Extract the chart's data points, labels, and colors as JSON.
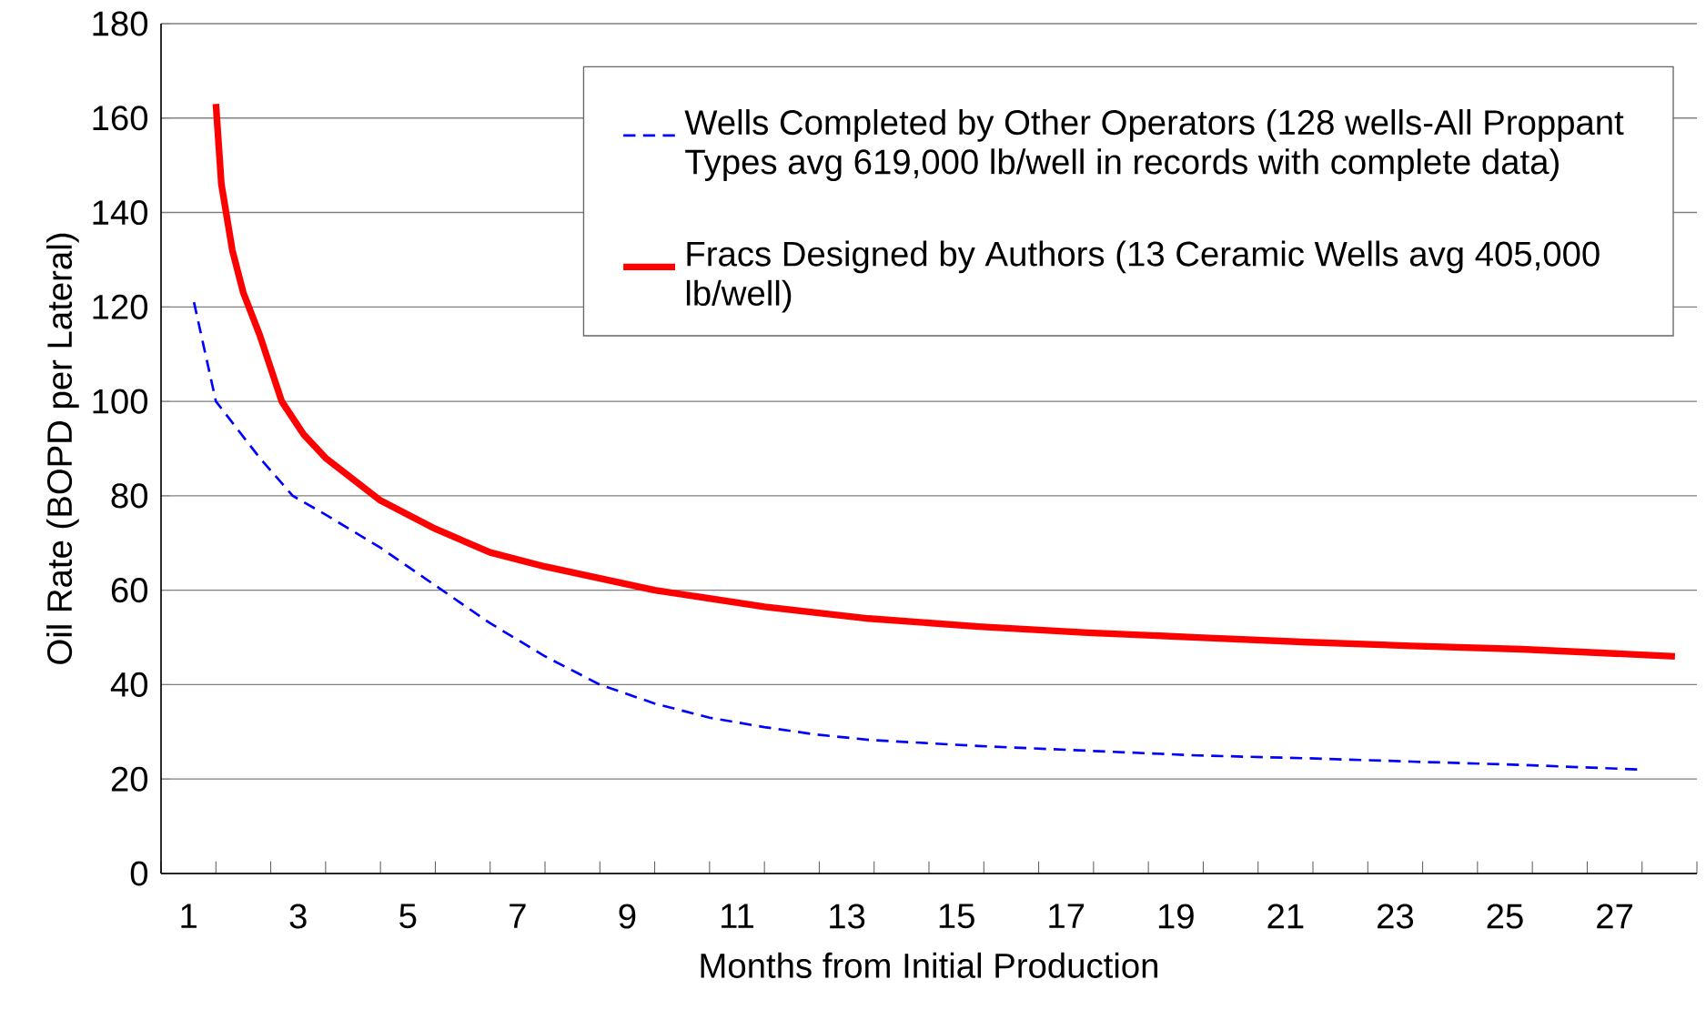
{
  "chart_data": {
    "type": "line",
    "xlabel": "Months from Initial Production",
    "ylabel": "Oil Rate (BOPD per Lateral)",
    "xlim": [
      0.5,
      28.5
    ],
    "ylim": [
      0,
      180
    ],
    "xticks": [
      {
        "value": 1,
        "label": "1"
      },
      {
        "value": 3,
        "label": "3"
      },
      {
        "value": 5,
        "label": "5"
      },
      {
        "value": 7,
        "label": "7"
      },
      {
        "value": 9,
        "label": "9"
      },
      {
        "value": 11,
        "label": "11"
      },
      {
        "value": 13,
        "label": "13"
      },
      {
        "value": 15,
        "label": "15"
      },
      {
        "value": 17,
        "label": "17"
      },
      {
        "value": 19,
        "label": "19"
      },
      {
        "value": 21,
        "label": "21"
      },
      {
        "value": 23,
        "label": "23"
      },
      {
        "value": 25,
        "label": "25"
      },
      {
        "value": 27,
        "label": "27"
      }
    ],
    "yticks": [
      0,
      20,
      40,
      60,
      80,
      100,
      120,
      140,
      160,
      180
    ],
    "grid": "y",
    "legend": "top right",
    "series": [
      {
        "name": "Wells Completed by Other Operators (128 wells-All Proppant Types avg 619,000 lb/well in records with complete data)",
        "color": "#0000ff",
        "line_style": "dashed",
        "x": [
          1.1,
          1.5,
          2.3,
          2.9,
          3.5,
          4.5,
          5.5,
          6.5,
          7.5,
          8.5,
          9.5,
          10.5,
          11.5,
          12.4,
          13.4,
          15.4,
          17.4,
          19.4,
          21.4,
          23.3,
          25.3,
          27.5
        ],
        "values": [
          121,
          100,
          88,
          80,
          76,
          69,
          61,
          53,
          46,
          40,
          36,
          33,
          31,
          29.5,
          28.3,
          27,
          26,
          25,
          24.4,
          23.7,
          23,
          22
        ]
      },
      {
        "name": "Fracs Designed by Authors (13 Ceramic Wells avg 405,000 lb/well)",
        "color": "#ff0000",
        "line_style": "solid",
        "x": [
          1.5,
          1.6,
          1.8,
          2.0,
          2.3,
          2.7,
          3.1,
          3.5,
          4.5,
          5.5,
          6.5,
          7.5,
          9.5,
          11.5,
          13.4,
          15.4,
          17.4,
          19.4,
          21.4,
          23.3,
          25.3,
          28.1
        ],
        "values": [
          163,
          146,
          132,
          123,
          114,
          100,
          93,
          88,
          79,
          73,
          68,
          65,
          60,
          56.5,
          54,
          52.3,
          51,
          50,
          49,
          48.2,
          47.5,
          46
        ]
      }
    ]
  }
}
